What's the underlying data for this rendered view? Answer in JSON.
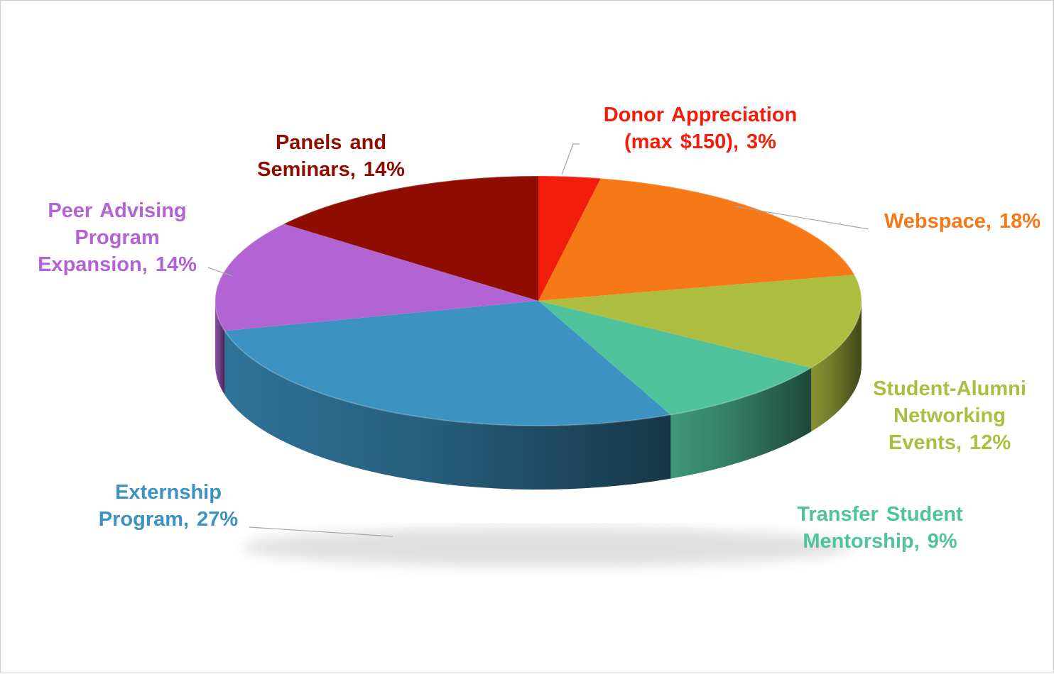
{
  "chart_data": {
    "type": "pie",
    "style": "3d",
    "title": "",
    "slices": [
      {
        "name": "Donor Appreciation (max $150)",
        "value": 3,
        "color": "#f21d0a",
        "label_lines": [
          "Donor Appreciation",
          "(max $150), 3%"
        ]
      },
      {
        "name": "Webspace",
        "value": 18,
        "color": "#f77817",
        "label_lines": [
          "Webspace,  18%"
        ]
      },
      {
        "name": "Student-Alumni Networking Events",
        "value": 12,
        "color": "#adbd40",
        "label_lines": [
          "Student-Alumni",
          "Networking",
          "Events, 12%"
        ]
      },
      {
        "name": "Transfer Student Mentorship",
        "value": 9,
        "color": "#50c29c",
        "label_lines": [
          "Transfer Student",
          "Mentorship, 9%"
        ]
      },
      {
        "name": "Externship Program",
        "value": 27,
        "color": "#3c93c2",
        "label_lines": [
          "Externship",
          "Program, 27%"
        ]
      },
      {
        "name": "Peer Advising Program Expansion",
        "value": 14,
        "color": "#b263d4",
        "label_lines": [
          "Peer Advising",
          "Program",
          "Expansion, 14%"
        ]
      },
      {
        "name": "Panels and Seminars",
        "value": 14,
        "color": "#8e0d00",
        "label_lines": [
          "Panels  and",
          "Seminars, 14%"
        ]
      }
    ],
    "legend": "none",
    "data_labels": "category name and percent, outside with leader lines"
  }
}
